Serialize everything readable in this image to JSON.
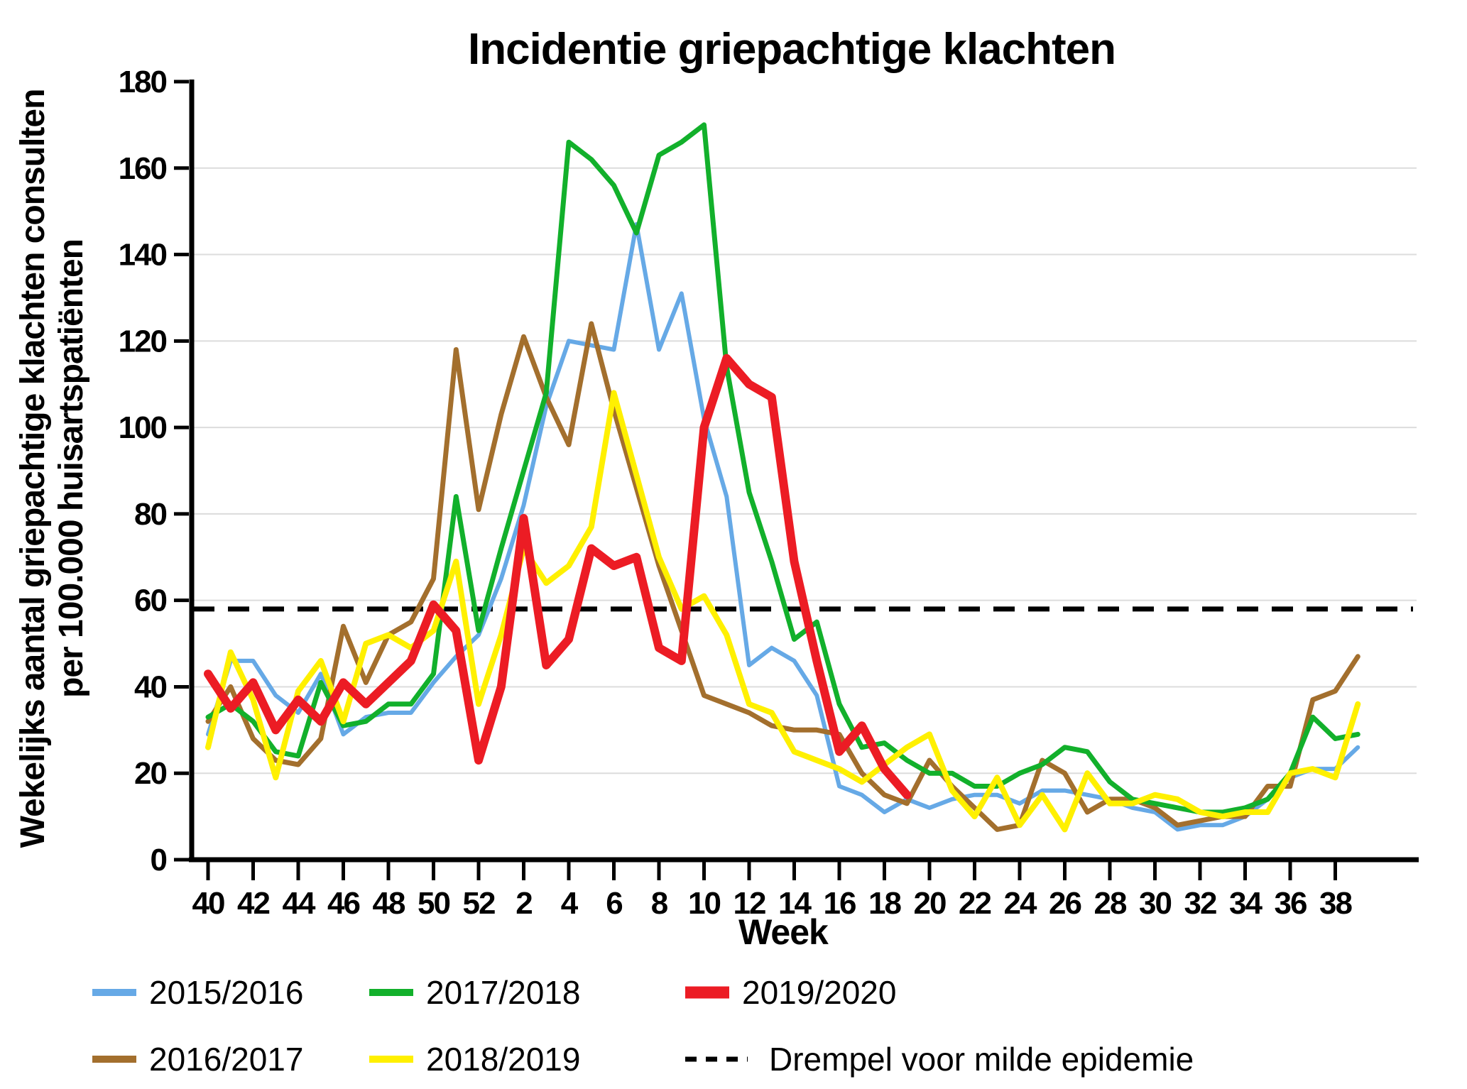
{
  "title": "Incidentie griepachtige klachten",
  "y_axis": {
    "title_line1": "Wekelijks aantal griepachtige klachten consulten",
    "title_line2": "per 100.000 huisartspatiënten",
    "tick_values": [
      0,
      20,
      40,
      60,
      80,
      100,
      120,
      140,
      160,
      180
    ],
    "min": 0,
    "max": 180
  },
  "x_axis": {
    "title": "Week",
    "tick_labels": [
      "40",
      "42",
      "44",
      "46",
      "48",
      "50",
      "52",
      "2",
      "4",
      "6",
      "8",
      "10",
      "12",
      "14",
      "16",
      "18",
      "20",
      "22",
      "24",
      "26",
      "28",
      "30",
      "32",
      "34",
      "36",
      "38"
    ]
  },
  "legend": {
    "items": [
      {
        "label": "2015/2016",
        "color": "#66A9E6",
        "style": "line",
        "row": 0,
        "col": 0
      },
      {
        "label": "2016/2017",
        "color": "#A36F2D",
        "style": "line",
        "row": 1,
        "col": 0
      },
      {
        "label": "2017/2018",
        "color": "#12B02B",
        "style": "line",
        "row": 0,
        "col": 1
      },
      {
        "label": "2018/2019",
        "color": "#FFF000",
        "style": "line",
        "row": 1,
        "col": 1
      },
      {
        "label": "2019/2020",
        "color": "#EC1C24",
        "style": "thick-line",
        "row": 0,
        "col": 2
      },
      {
        "label": "Drempel voor milde epidemie",
        "color": "#000000",
        "style": "dashed",
        "row": 1,
        "col": 2
      }
    ]
  },
  "threshold": {
    "label": "Drempel voor milde epidemie",
    "value": 58
  },
  "chart_data": {
    "type": "line",
    "title": "Incidentie griepachtige klachten",
    "xlabel": "Week",
    "ylabel": "Wekelijks aantal griepachtige klachten consulten per 100.000 huisartspatiënten",
    "ylim": [
      0,
      180
    ],
    "grid": "horizontal",
    "legend_position": "bottom",
    "x_weeks": [
      "40",
      "41",
      "42",
      "43",
      "44",
      "45",
      "46",
      "47",
      "48",
      "49",
      "50",
      "51",
      "52",
      "1",
      "2",
      "3",
      "4",
      "5",
      "6",
      "7",
      "8",
      "9",
      "10",
      "11",
      "12",
      "13",
      "14",
      "15",
      "16",
      "17",
      "18",
      "19",
      "20",
      "21",
      "22",
      "23",
      "24",
      "25",
      "26",
      "27",
      "28",
      "29",
      "30",
      "31",
      "32",
      "33",
      "34",
      "35",
      "36",
      "37",
      "38",
      "39"
    ],
    "threshold_value": 58,
    "series": [
      {
        "name": "2015/2016",
        "color": "#66A9E6",
        "width": 6,
        "values": [
          29,
          46,
          46,
          38,
          34,
          43,
          29,
          33,
          34,
          34,
          41,
          47,
          52,
          65,
          82,
          105,
          120,
          119,
          118,
          147,
          118,
          131,
          102,
          84,
          45,
          49,
          46,
          38,
          17,
          15,
          11,
          14,
          12,
          14,
          15,
          15,
          13,
          16,
          16,
          15,
          14,
          12,
          11,
          7,
          8,
          8,
          10,
          14,
          19,
          21,
          21,
          26
        ]
      },
      {
        "name": "2016/2017",
        "color": "#A36F2D",
        "width": 7,
        "values": [
          32,
          40,
          28,
          23,
          22,
          28,
          54,
          41,
          52,
          55,
          65,
          118,
          81,
          103,
          121,
          107,
          96,
          124,
          104,
          86,
          68,
          53,
          38,
          36,
          34,
          31,
          30,
          30,
          29,
          20,
          15,
          13,
          23,
          17,
          12,
          7,
          8,
          23,
          20,
          11,
          14,
          14,
          12,
          8,
          9,
          10,
          10,
          17,
          17,
          37,
          39,
          47
        ]
      },
      {
        "name": "2017/2018",
        "color": "#12B02B",
        "width": 7,
        "values": [
          33,
          36,
          32,
          25,
          24,
          41,
          31,
          32,
          36,
          36,
          43,
          84,
          53,
          72,
          90,
          108,
          166,
          162,
          156,
          145,
          163,
          166,
          170,
          114,
          85,
          69,
          51,
          55,
          36,
          26,
          27,
          23,
          20,
          20,
          17,
          17,
          20,
          22,
          26,
          25,
          18,
          14,
          13,
          12,
          11,
          11,
          12,
          14,
          20,
          33,
          28,
          29
        ]
      },
      {
        "name": "2018/2019",
        "color": "#FFF000",
        "width": 8,
        "values": [
          26,
          48,
          37,
          19,
          39,
          46,
          32,
          50,
          52,
          49,
          53,
          69,
          36,
          52,
          72,
          64,
          68,
          77,
          108,
          89,
          70,
          58,
          61,
          52,
          36,
          34,
          25,
          23,
          21,
          18,
          22,
          26,
          29,
          16,
          10,
          19,
          8,
          15,
          7,
          20,
          13,
          13,
          15,
          14,
          11,
          10,
          11,
          11,
          20,
          21,
          19,
          36
        ]
      },
      {
        "name": "2019/2020",
        "color": "#EC1C24",
        "width": 12,
        "values": [
          43,
          35,
          41,
          30,
          37,
          32,
          41,
          36,
          41,
          46,
          59,
          53,
          23,
          40,
          79,
          45,
          51,
          72,
          68,
          70,
          49,
          46,
          100,
          116,
          110,
          107,
          69,
          46,
          25,
          31,
          21,
          15,
          null,
          null,
          null,
          null,
          null,
          null,
          null,
          null,
          null,
          null,
          null,
          null,
          null,
          null,
          null,
          null,
          null,
          null,
          null,
          null
        ]
      }
    ]
  },
  "colors": {
    "grid": "#DCDCDC",
    "axis": "#000000",
    "background": "#FFFFFF"
  }
}
